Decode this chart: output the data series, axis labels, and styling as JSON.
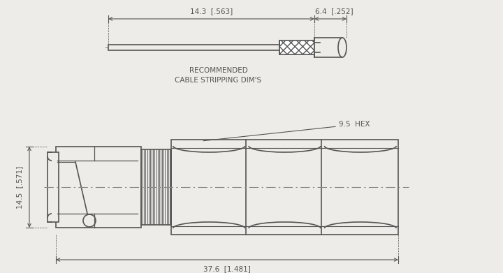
{
  "bg_color": "#eeece8",
  "line_color": "#555555",
  "dim_color": "#555555",
  "centerline_color": "#888888",
  "top": {
    "caption_line1": "RECOMMENDED",
    "caption_line2": "CABLE STRIPPING DIM'S",
    "dim1_label": "14.3  [.563]",
    "dim2_label": "6.4  [.252]"
  },
  "bottom": {
    "dim_h_label": "14.5  [.571]",
    "dim_w_label": "37.6  [1.481]",
    "hex_label": "9.5  HEX"
  }
}
